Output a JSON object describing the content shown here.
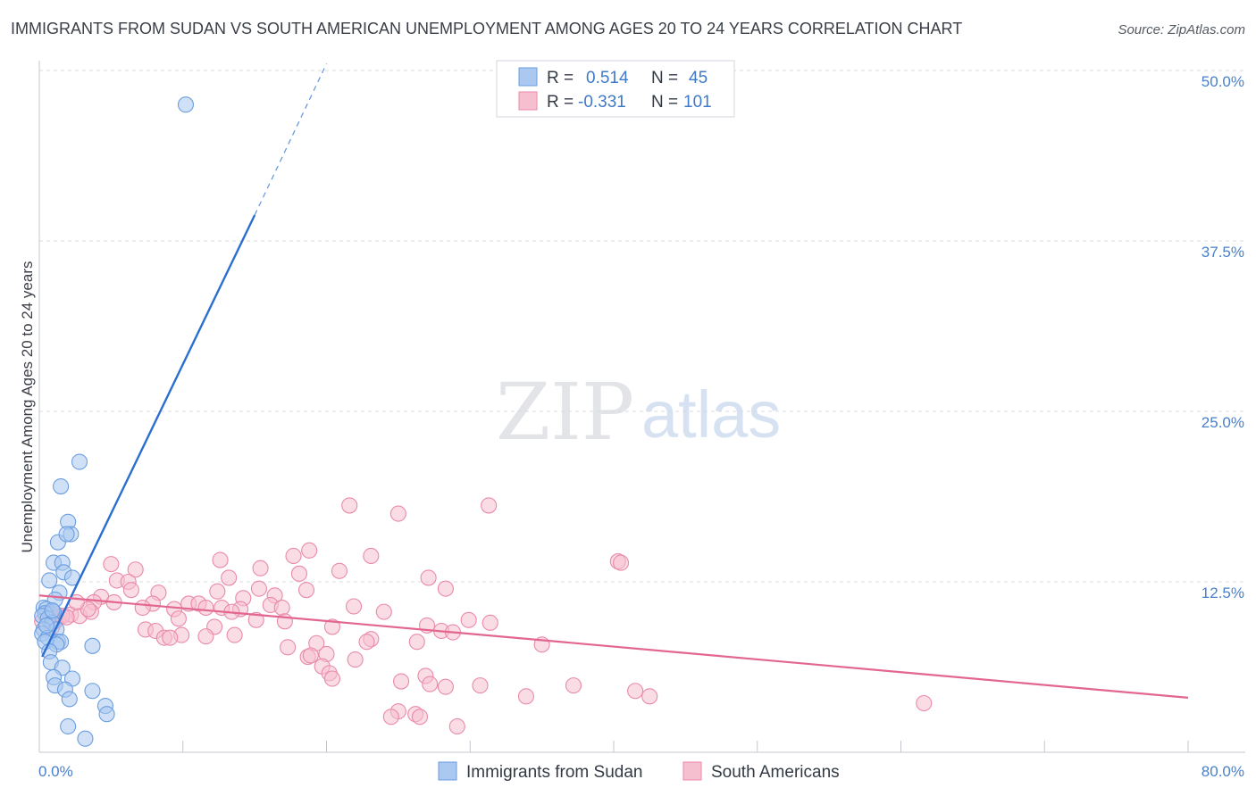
{
  "header": {
    "title": "IMMIGRANTS FROM SUDAN VS SOUTH AMERICAN UNEMPLOYMENT AMONG AGES 20 TO 24 YEARS CORRELATION CHART",
    "source": "Source: ZipAtlas.com"
  },
  "watermark": {
    "zip": "ZIP",
    "atlas": "atlas"
  },
  "colors": {
    "blue_fill": "#aac8f0",
    "blue_stroke": "#6b9ee0",
    "blue_line": "#2a6fd0",
    "pink_fill": "#f6bfd0",
    "pink_stroke": "#e98aaa",
    "pink_line": "#e2668f",
    "grid": "#d7dbe1",
    "tick_text": "#4a7fc9"
  },
  "legend": {
    "rows": [
      {
        "r_label": "R =",
        "r_value": "0.514",
        "n_label": "N =",
        "n_value": "45"
      },
      {
        "r_label": "R =",
        "r_value": "-0.331",
        "n_label": "N =",
        "n_value": "101"
      }
    ]
  },
  "chart_data": {
    "type": "scatter",
    "title": "IMMIGRANTS FROM SUDAN VS SOUTH AMERICAN UNEMPLOYMENT AMONG AGES 20 TO 24 YEARS CORRELATION CHART",
    "xlabel": "",
    "ylabel": "Unemployment Among Ages 20 to 24 years",
    "xlim": [
      0,
      80
    ],
    "ylim": [
      0,
      50
    ],
    "x_tick_labels": [
      "0.0%",
      "80.0%"
    ],
    "y_ticks": [
      12.5,
      25.0,
      37.5,
      50.0
    ],
    "y_tick_labels": [
      "12.5%",
      "25.0%",
      "37.5%",
      "50.0%"
    ],
    "grid": true,
    "series": [
      {
        "name": "Immigrants from Sudan",
        "r": 0.514,
        "n": 45,
        "trend": {
          "x_start": 0.2,
          "y_start": 7.0,
          "x_solid_end": 15.0,
          "y_solid_end": 39.4,
          "x_dashed_end": 20.0,
          "y_dashed_end": 50.5
        },
        "points": [
          [
            10.2,
            47.5
          ],
          [
            2.8,
            21.3
          ],
          [
            1.5,
            19.5
          ],
          [
            2.0,
            16.9
          ],
          [
            1.3,
            15.4
          ],
          [
            2.2,
            16.0
          ],
          [
            1.9,
            16.0
          ],
          [
            1.0,
            13.9
          ],
          [
            1.6,
            13.9
          ],
          [
            1.7,
            13.2
          ],
          [
            0.7,
            12.6
          ],
          [
            2.3,
            12.8
          ],
          [
            1.4,
            11.7
          ],
          [
            1.1,
            11.2
          ],
          [
            0.3,
            10.6
          ],
          [
            0.5,
            10.5
          ],
          [
            1.0,
            10.3
          ],
          [
            0.4,
            10.2
          ],
          [
            0.2,
            10.0
          ],
          [
            0.6,
            9.8
          ],
          [
            0.9,
            9.5
          ],
          [
            0.3,
            9.0
          ],
          [
            1.2,
            9.0
          ],
          [
            0.2,
            8.7
          ],
          [
            0.6,
            8.4
          ],
          [
            0.4,
            8.1
          ],
          [
            1.3,
            8.1
          ],
          [
            1.5,
            8.1
          ],
          [
            1.2,
            7.9
          ],
          [
            3.7,
            7.8
          ],
          [
            0.7,
            7.4
          ],
          [
            0.8,
            6.6
          ],
          [
            1.6,
            6.2
          ],
          [
            1.0,
            5.5
          ],
          [
            2.3,
            5.4
          ],
          [
            1.1,
            4.9
          ],
          [
            1.8,
            4.6
          ],
          [
            3.7,
            4.5
          ],
          [
            2.1,
            3.9
          ],
          [
            4.6,
            3.4
          ],
          [
            4.7,
            2.8
          ],
          [
            2.0,
            1.9
          ],
          [
            3.2,
            1.0
          ],
          [
            0.9,
            10.4
          ],
          [
            0.5,
            9.3
          ]
        ]
      },
      {
        "name": "South Americans",
        "r": -0.331,
        "n": 101,
        "trend": {
          "x_start": 0,
          "y_start": 11.5,
          "x_end": 80,
          "y_end": 4.0
        },
        "points": [
          [
            21.6,
            18.1
          ],
          [
            31.3,
            18.1
          ],
          [
            25.0,
            17.5
          ],
          [
            18.8,
            14.8
          ],
          [
            17.7,
            14.4
          ],
          [
            23.1,
            14.4
          ],
          [
            12.6,
            14.1
          ],
          [
            40.3,
            14.0
          ],
          [
            40.5,
            13.9
          ],
          [
            5.0,
            13.8
          ],
          [
            6.7,
            13.4
          ],
          [
            15.4,
            13.5
          ],
          [
            20.9,
            13.3
          ],
          [
            18.1,
            13.1
          ],
          [
            27.1,
            12.8
          ],
          [
            13.2,
            12.8
          ],
          [
            5.4,
            12.6
          ],
          [
            6.2,
            12.5
          ],
          [
            6.4,
            11.9
          ],
          [
            15.3,
            12.0
          ],
          [
            28.3,
            12.0
          ],
          [
            12.4,
            11.8
          ],
          [
            18.6,
            11.9
          ],
          [
            8.3,
            11.7
          ],
          [
            16.4,
            11.5
          ],
          [
            4.3,
            11.4
          ],
          [
            14.2,
            11.3
          ],
          [
            3.8,
            11.0
          ],
          [
            5.2,
            11.0
          ],
          [
            7.9,
            10.9
          ],
          [
            10.4,
            10.9
          ],
          [
            11.1,
            10.9
          ],
          [
            16.1,
            10.8
          ],
          [
            21.9,
            10.7
          ],
          [
            7.2,
            10.6
          ],
          [
            11.6,
            10.6
          ],
          [
            12.7,
            10.6
          ],
          [
            9.4,
            10.5
          ],
          [
            14.0,
            10.5
          ],
          [
            16.9,
            10.6
          ],
          [
            24.0,
            10.3
          ],
          [
            0.5,
            10.1
          ],
          [
            1.4,
            10.0
          ],
          [
            2.2,
            10.1
          ],
          [
            2.8,
            10.0
          ],
          [
            3.6,
            10.3
          ],
          [
            13.4,
            10.3
          ],
          [
            1.6,
            10.0
          ],
          [
            0.8,
            10.1
          ],
          [
            1.0,
            9.8
          ],
          [
            0.2,
            9.6
          ],
          [
            1.1,
            9.6
          ],
          [
            1.9,
            9.9
          ],
          [
            3.4,
            10.5
          ],
          [
            9.7,
            9.8
          ],
          [
            15.1,
            9.7
          ],
          [
            17.1,
            9.6
          ],
          [
            29.9,
            9.7
          ],
          [
            31.4,
            9.5
          ],
          [
            27.0,
            9.3
          ],
          [
            12.2,
            9.2
          ],
          [
            20.4,
            9.2
          ],
          [
            28.0,
            8.9
          ],
          [
            7.4,
            9.0
          ],
          [
            8.1,
            8.9
          ],
          [
            9.9,
            8.6
          ],
          [
            11.6,
            8.5
          ],
          [
            13.6,
            8.6
          ],
          [
            28.8,
            8.8
          ],
          [
            0.9,
            9.2
          ],
          [
            23.1,
            8.3
          ],
          [
            8.7,
            8.4
          ],
          [
            9.1,
            8.4
          ],
          [
            22.8,
            8.1
          ],
          [
            26.3,
            8.1
          ],
          [
            35.0,
            7.9
          ],
          [
            17.3,
            7.7
          ],
          [
            19.3,
            8.0
          ],
          [
            20.0,
            7.2
          ],
          [
            22.0,
            6.8
          ],
          [
            18.7,
            7.0
          ],
          [
            18.9,
            7.1
          ],
          [
            19.7,
            6.3
          ],
          [
            20.2,
            5.8
          ],
          [
            20.4,
            5.4
          ],
          [
            26.9,
            5.6
          ],
          [
            25.2,
            5.2
          ],
          [
            27.2,
            5.0
          ],
          [
            30.7,
            4.9
          ],
          [
            28.3,
            4.8
          ],
          [
            37.2,
            4.9
          ],
          [
            41.5,
            4.5
          ],
          [
            42.5,
            4.1
          ],
          [
            33.9,
            4.1
          ],
          [
            61.6,
            3.6
          ],
          [
            25.0,
            3.0
          ],
          [
            24.5,
            2.6
          ],
          [
            26.2,
            2.8
          ],
          [
            26.5,
            2.6
          ],
          [
            29.1,
            1.9
          ],
          [
            2.6,
            11.0
          ]
        ]
      }
    ]
  },
  "bottom_legend": [
    {
      "label": "Immigrants from Sudan"
    },
    {
      "label": "South Americans"
    }
  ]
}
